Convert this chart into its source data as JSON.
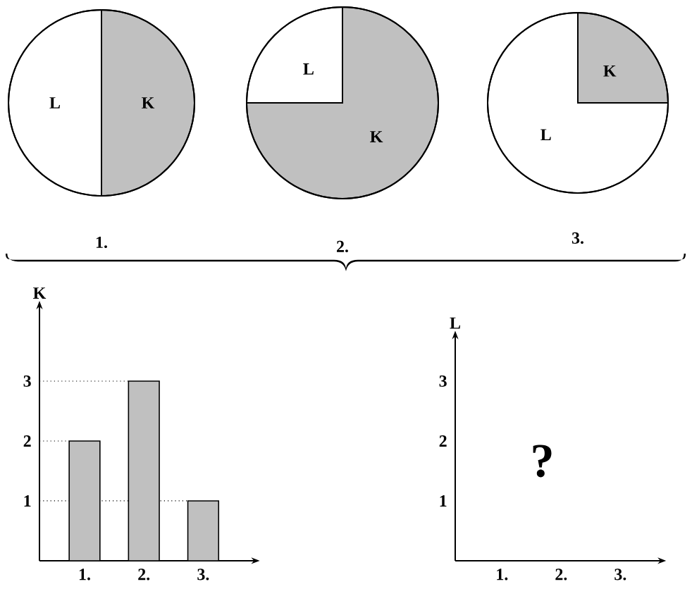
{
  "chart_data": [
    {
      "type": "pie",
      "title": "1.",
      "categories": [
        "L",
        "K"
      ],
      "values": [
        50,
        50
      ],
      "colors": [
        "#ffffff",
        "#c0c0c0"
      ]
    },
    {
      "type": "pie",
      "title": "2.",
      "categories": [
        "L",
        "K"
      ],
      "values": [
        25,
        75
      ],
      "colors": [
        "#ffffff",
        "#c0c0c0"
      ]
    },
    {
      "type": "pie",
      "title": "3.",
      "categories": [
        "L",
        "K"
      ],
      "values": [
        75,
        25
      ],
      "colors": [
        "#ffffff",
        "#c0c0c0"
      ]
    },
    {
      "type": "bar",
      "categories": [
        "1.",
        "2.",
        "3."
      ],
      "values": [
        2,
        3,
        1
      ],
      "color": "#c0c0c0",
      "ylabel": "K",
      "ylim": [
        0,
        4.2
      ],
      "yticks": [
        1,
        2,
        3
      ],
      "ref_lines": [
        {
          "axis": "y",
          "value": 1,
          "line_style": "dotted"
        },
        {
          "axis": "y",
          "value": 2,
          "line_style": "dotted"
        },
        {
          "axis": "y",
          "value": 3,
          "line_style": "dotted"
        }
      ]
    },
    {
      "type": "bar",
      "categories": [
        "1.",
        "2.",
        "3."
      ],
      "values": [
        null,
        null,
        null
      ],
      "ylabel": "L",
      "ylim": [
        0,
        3.7
      ],
      "yticks": [
        1,
        2,
        3
      ],
      "annotations": [
        "?"
      ]
    }
  ]
}
